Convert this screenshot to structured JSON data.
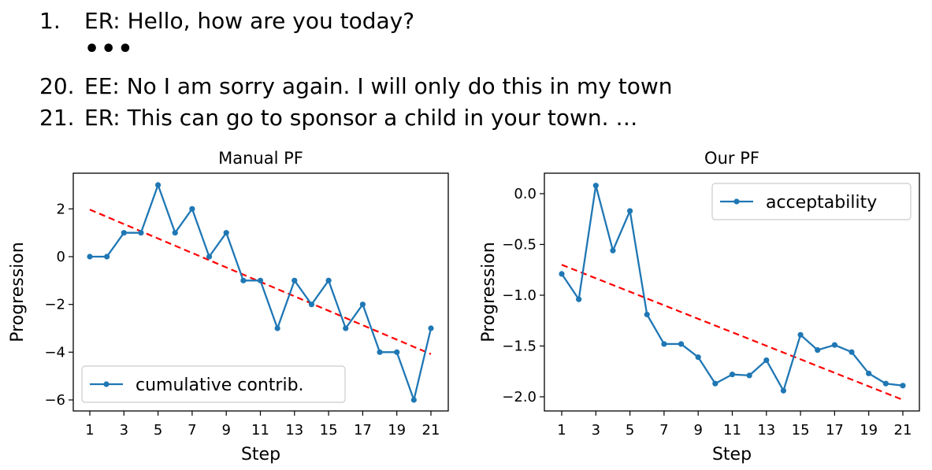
{
  "dialogue": {
    "lines": [
      {
        "num": "1.",
        "text": "ER: Hello, how are you today?"
      },
      {
        "num": "20.",
        "text": "EE: No I am sorry again. I will only do this in my town"
      },
      {
        "num": "21.",
        "text": "ER: This can go to sponsor a child in your town. …"
      }
    ],
    "ellipsis": "•••"
  },
  "chart_data": [
    {
      "type": "line",
      "title": "Manual PF",
      "xlabel": "Step",
      "ylabel": "Progression",
      "xlim": [
        1,
        21
      ],
      "ylim": [
        -6,
        3
      ],
      "xticks": [
        1,
        3,
        5,
        7,
        9,
        11,
        13,
        15,
        17,
        19,
        21
      ],
      "yticks": [
        2,
        0,
        -2,
        -4,
        -6
      ],
      "legend": "lower-left",
      "series": [
        {
          "name": "cumulative contrib.",
          "color": "#1f77b4",
          "x": [
            1,
            2,
            3,
            4,
            5,
            6,
            7,
            8,
            9,
            10,
            11,
            12,
            13,
            14,
            15,
            16,
            17,
            18,
            19,
            20,
            21
          ],
          "y": [
            0,
            0,
            1,
            1,
            3,
            1,
            2,
            0,
            1,
            -1,
            -1,
            -3,
            -1,
            -2,
            -1,
            -3,
            -2,
            -4,
            -4,
            -6,
            -3
          ]
        }
      ],
      "trend": {
        "color": "#ff0000",
        "x": [
          1,
          21
        ],
        "y": [
          1.97,
          -4.08
        ]
      }
    },
    {
      "type": "line",
      "title": "Our PF",
      "xlabel": "Step",
      "ylabel": "Progression",
      "xlim": [
        1,
        21
      ],
      "ylim": [
        -2.0,
        0.0
      ],
      "xticks": [
        1,
        3,
        5,
        7,
        9,
        11,
        13,
        15,
        17,
        19,
        21
      ],
      "yticks": [
        0.0,
        -0.5,
        -1.0,
        -1.5,
        -2.0
      ],
      "legend": "top-right",
      "series": [
        {
          "name": "acceptability",
          "color": "#1f77b4",
          "x": [
            1,
            2,
            3,
            4,
            5,
            6,
            7,
            8,
            9,
            10,
            11,
            12,
            13,
            14,
            15,
            16,
            17,
            18,
            19,
            20,
            21
          ],
          "y": [
            -0.79,
            -1.04,
            0.08,
            -0.56,
            -0.17,
            -1.19,
            -1.48,
            -1.48,
            -1.61,
            -1.87,
            -1.78,
            -1.79,
            -1.64,
            -1.94,
            -1.39,
            -1.54,
            -1.49,
            -1.56,
            -1.77,
            -1.87,
            -1.89
          ]
        }
      ],
      "trend": {
        "color": "#ff0000",
        "x": [
          1,
          21
        ],
        "y": [
          -0.7,
          -2.03
        ]
      }
    }
  ]
}
